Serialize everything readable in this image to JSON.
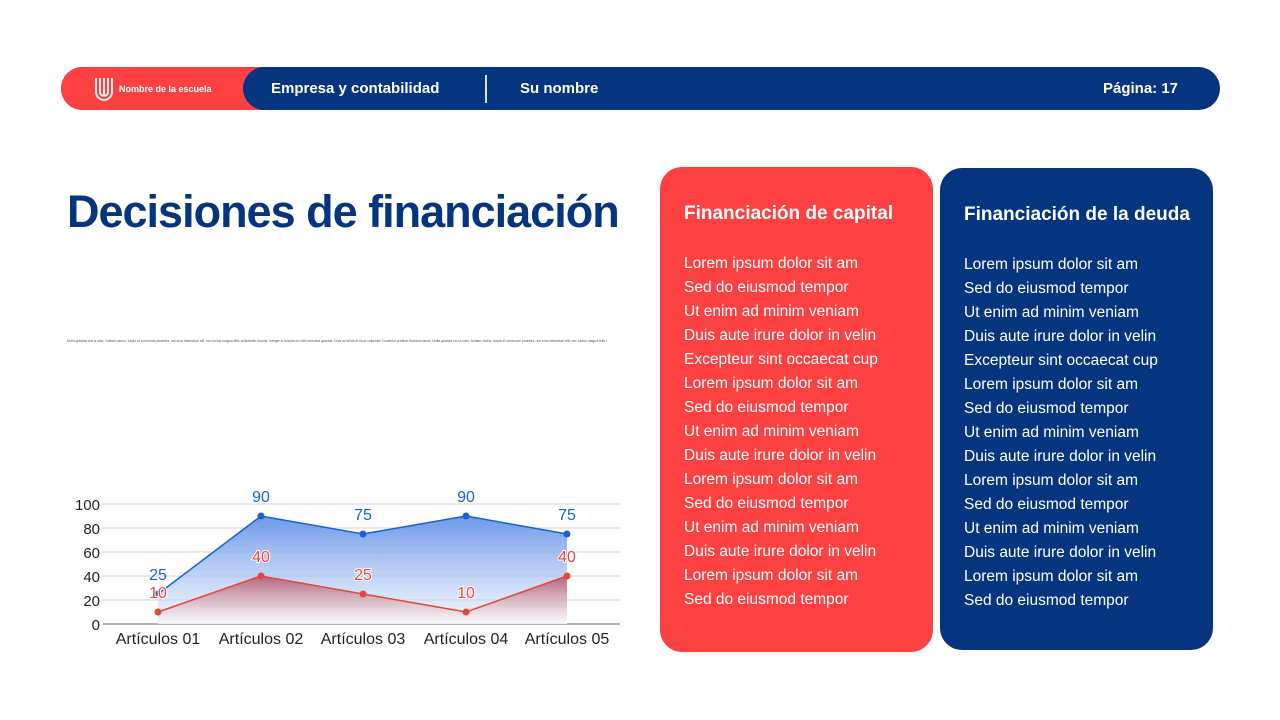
{
  "header": {
    "school": "Nombre de la escuela",
    "subject": "Empresa y contabilidad",
    "name": "Su nombre",
    "page": "Página: 17"
  },
  "title": "Decisiones de financiación",
  "body_text": "Nulla gravida orci a odio. Nullam varius, turpis et commodo pharetra, est eros bibendum elit, nec luctus magna felis sollicitudin mauris. Integer in mauris eu nibh euismod gravida. Duis ac tellus et risus vulputate      Curabitur pretium tincidunt lacus. Nulla gravida orci a odio. Nullam varius, turpis et commodo pharetra, est eros bibendum elit, nec luctus magna felis sollicitudin",
  "colors": {
    "red": "#fb4141",
    "navy": "#05357f",
    "series_blue": "#1a5fd6",
    "series_red": "#e0473f"
  },
  "cards": [
    {
      "title": "Financiación de capital",
      "items": [
        "Lorem ipsum dolor sit am",
        "Sed do eiusmod tempor",
        "Ut enim ad minim veniam",
        "Duis aute irure dolor in velin",
        "Excepteur sint occaecat cup",
        "Lorem ipsum dolor sit am",
        "Sed do eiusmod tempor",
        "Ut enim ad minim veniam",
        "Duis aute irure dolor in velin",
        "Lorem ipsum dolor sit am",
        "Sed do eiusmod tempor",
        "Ut enim ad minim veniam",
        "Duis aute irure dolor in velin",
        "Lorem ipsum dolor sit am",
        "Sed do eiusmod tempor"
      ]
    },
    {
      "title": "Financiación de la deuda",
      "items": [
        "Lorem ipsum dolor sit am",
        "Sed do eiusmod tempor",
        "Ut enim ad minim veniam",
        "Duis aute irure dolor in velin",
        "Excepteur sint occaecat cup",
        "Lorem ipsum dolor sit am",
        "Sed do eiusmod tempor",
        "Ut enim ad minim veniam",
        "Duis aute irure dolor in velin",
        "Lorem ipsum dolor sit am",
        "Sed do eiusmod tempor",
        "Ut enim ad minim veniam",
        "Duis aute irure dolor in velin",
        "Lorem ipsum dolor sit am",
        "Sed do eiusmod tempor"
      ]
    }
  ],
  "chart_data": {
    "type": "area",
    "categories": [
      "Artículos 01",
      "Artículos 02",
      "Artículos 03",
      "Artículos 04",
      "Artículos 05"
    ],
    "series": [
      {
        "values": [
          25,
          90,
          75,
          90,
          75
        ],
        "color": "#1a5fd6"
      },
      {
        "values": [
          10,
          40,
          25,
          10,
          40
        ],
        "color": "#e0473f"
      }
    ],
    "ylim": [
      0,
      100
    ],
    "yticks": [
      0,
      20,
      40,
      60,
      80,
      100
    ],
    "grid": true,
    "data_labels": true
  }
}
